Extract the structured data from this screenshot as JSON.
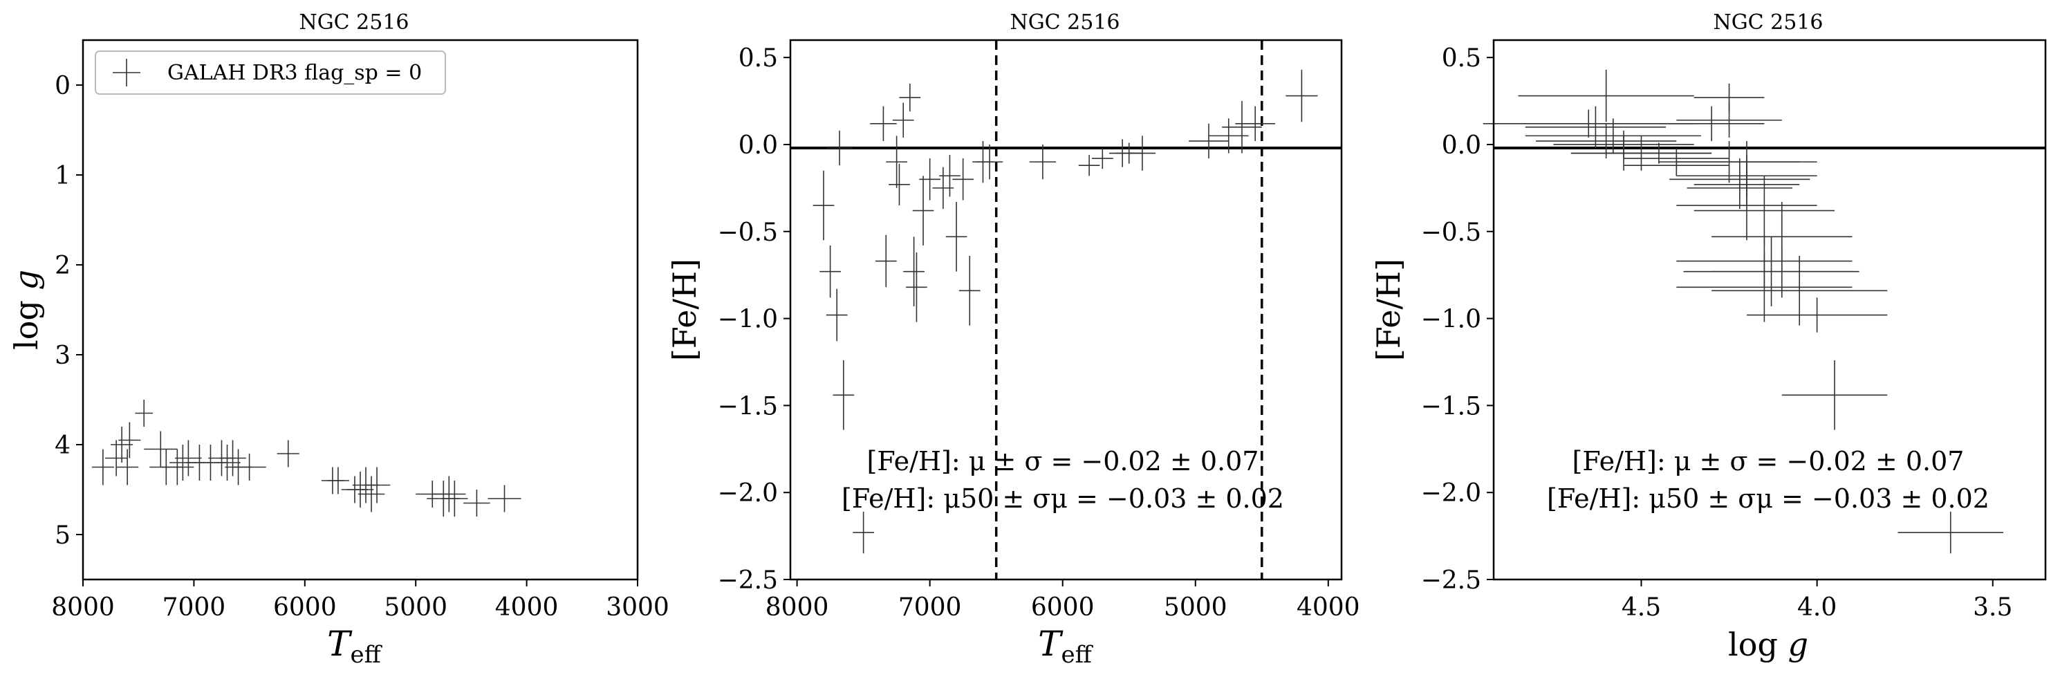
{
  "chart_data": [
    {
      "type": "scatter",
      "title": "NGC 2516",
      "xlabel": "T_eff",
      "ylabel": "log g",
      "xlim": [
        8000,
        3000
      ],
      "ylim": [
        5.5,
        -0.5
      ],
      "xticks": [
        8000,
        7000,
        6000,
        5000,
        4000,
        3000
      ],
      "yticks": [
        0,
        1,
        2,
        3,
        4,
        5
      ],
      "legend": {
        "label": "GALAH DR3 flag_sp = 0",
        "placement": "top-left"
      },
      "series": [
        {
          "name": "GALAH DR3 flag_sp = 0",
          "points": [
            {
              "x": 7820,
              "y": 4.25,
              "ex": 100,
              "ey": 0.2
            },
            {
              "x": 7700,
              "y": 4.15,
              "ex": 100,
              "ey": 0.2
            },
            {
              "x": 7650,
              "y": 4.0,
              "ex": 100,
              "ey": 0.2
            },
            {
              "x": 7600,
              "y": 4.25,
              "ex": 100,
              "ey": 0.2
            },
            {
              "x": 7580,
              "y": 3.95,
              "ex": 100,
              "ey": 0.2
            },
            {
              "x": 7450,
              "y": 3.65,
              "ex": 80,
              "ey": 0.15
            },
            {
              "x": 7300,
              "y": 4.05,
              "ex": 150,
              "ey": 0.2
            },
            {
              "x": 7250,
              "y": 4.25,
              "ex": 150,
              "ey": 0.2
            },
            {
              "x": 7150,
              "y": 4.25,
              "ex": 150,
              "ey": 0.2
            },
            {
              "x": 7100,
              "y": 4.2,
              "ex": 120,
              "ey": 0.2
            },
            {
              "x": 7050,
              "y": 4.15,
              "ex": 120,
              "ey": 0.2
            },
            {
              "x": 6950,
              "y": 4.2,
              "ex": 120,
              "ey": 0.2
            },
            {
              "x": 6850,
              "y": 4.2,
              "ex": 150,
              "ey": 0.2
            },
            {
              "x": 6750,
              "y": 4.15,
              "ex": 120,
              "ey": 0.2
            },
            {
              "x": 6700,
              "y": 4.2,
              "ex": 120,
              "ey": 0.2
            },
            {
              "x": 6650,
              "y": 4.15,
              "ex": 120,
              "ey": 0.2
            },
            {
              "x": 6600,
              "y": 4.25,
              "ex": 120,
              "ey": 0.2
            },
            {
              "x": 6500,
              "y": 4.25,
              "ex": 150,
              "ey": 0.15
            },
            {
              "x": 6150,
              "y": 4.1,
              "ex": 100,
              "ey": 0.15
            },
            {
              "x": 5750,
              "y": 4.4,
              "ex": 100,
              "ey": 0.15
            },
            {
              "x": 5700,
              "y": 4.4,
              "ex": 100,
              "ey": 0.15
            },
            {
              "x": 5550,
              "y": 4.5,
              "ex": 120,
              "ey": 0.15
            },
            {
              "x": 5500,
              "y": 4.5,
              "ex": 120,
              "ey": 0.2
            },
            {
              "x": 5450,
              "y": 4.45,
              "ex": 120,
              "ey": 0.2
            },
            {
              "x": 5400,
              "y": 4.55,
              "ex": 120,
              "ey": 0.2
            },
            {
              "x": 5350,
              "y": 4.45,
              "ex": 120,
              "ey": 0.2
            },
            {
              "x": 4850,
              "y": 4.55,
              "ex": 150,
              "ey": 0.15
            },
            {
              "x": 4750,
              "y": 4.6,
              "ex": 150,
              "ey": 0.2
            },
            {
              "x": 4700,
              "y": 4.55,
              "ex": 150,
              "ey": 0.2
            },
            {
              "x": 4650,
              "y": 4.6,
              "ex": 120,
              "ey": 0.2
            },
            {
              "x": 4450,
              "y": 4.65,
              "ex": 120,
              "ey": 0.15
            },
            {
              "x": 4200,
              "y": 4.6,
              "ex": 150,
              "ey": 0.15
            }
          ]
        }
      ]
    },
    {
      "type": "scatter",
      "title": "NGC 2516",
      "xlabel": "T_eff",
      "ylabel": "[Fe/H]",
      "xlim": [
        8050,
        3900
      ],
      "ylim": [
        -2.5,
        0.6
      ],
      "xticks": [
        8000,
        7000,
        6000,
        5000,
        4000
      ],
      "yticks": [
        0.5,
        0.0,
        -0.5,
        -1.0,
        -1.5,
        -2.0,
        -2.5
      ],
      "hline": -0.02,
      "vlines": [
        6500,
        4500
      ],
      "annotations": [
        "[Fe/H]: μ ± σ = −0.02 ± 0.07",
        "[Fe/H]: μ50 ± σμ = −0.03 ± 0.02"
      ],
      "series": [
        {
          "name": "",
          "points": [
            {
              "x": 7800,
              "y": -0.35,
              "ex": 80,
              "ey": 0.2
            },
            {
              "x": 7750,
              "y": -0.73,
              "ex": 80,
              "ey": 0.15
            },
            {
              "x": 7700,
              "y": -0.98,
              "ex": 80,
              "ey": 0.15
            },
            {
              "x": 7680,
              "y": -0.02,
              "ex": 100,
              "ey": 0.1
            },
            {
              "x": 7650,
              "y": -1.44,
              "ex": 80,
              "ey": 0.2
            },
            {
              "x": 7500,
              "y": -2.23,
              "ex": 80,
              "ey": 0.12
            },
            {
              "x": 7350,
              "y": 0.12,
              "ex": 100,
              "ey": 0.1
            },
            {
              "x": 7330,
              "y": -0.67,
              "ex": 80,
              "ey": 0.15
            },
            {
              "x": 7250,
              "y": -0.1,
              "ex": 80,
              "ey": 0.15
            },
            {
              "x": 7230,
              "y": -0.23,
              "ex": 80,
              "ey": 0.12
            },
            {
              "x": 7200,
              "y": 0.14,
              "ex": 80,
              "ey": 0.1
            },
            {
              "x": 7150,
              "y": 0.27,
              "ex": 80,
              "ey": 0.08
            },
            {
              "x": 7120,
              "y": -0.73,
              "ex": 80,
              "ey": 0.2
            },
            {
              "x": 7100,
              "y": -0.82,
              "ex": 80,
              "ey": 0.2
            },
            {
              "x": 7050,
              "y": -0.38,
              "ex": 80,
              "ey": 0.2
            },
            {
              "x": 7000,
              "y": -0.2,
              "ex": 80,
              "ey": 0.12
            },
            {
              "x": 6900,
              "y": -0.25,
              "ex": 80,
              "ey": 0.12
            },
            {
              "x": 6850,
              "y": -0.18,
              "ex": 80,
              "ey": 0.12
            },
            {
              "x": 6800,
              "y": -0.53,
              "ex": 80,
              "ey": 0.2
            },
            {
              "x": 6750,
              "y": -0.2,
              "ex": 80,
              "ey": 0.12
            },
            {
              "x": 6700,
              "y": -0.84,
              "ex": 80,
              "ey": 0.2
            },
            {
              "x": 6600,
              "y": -0.1,
              "ex": 80,
              "ey": 0.12
            },
            {
              "x": 6550,
              "y": -0.1,
              "ex": 100,
              "ey": 0.1
            },
            {
              "x": 6150,
              "y": -0.1,
              "ex": 100,
              "ey": 0.1
            },
            {
              "x": 5800,
              "y": -0.12,
              "ex": 80,
              "ey": 0.06
            },
            {
              "x": 5700,
              "y": -0.08,
              "ex": 80,
              "ey": 0.06
            },
            {
              "x": 5550,
              "y": -0.05,
              "ex": 100,
              "ey": 0.08
            },
            {
              "x": 5500,
              "y": -0.05,
              "ex": 100,
              "ey": 0.06
            },
            {
              "x": 5400,
              "y": -0.05,
              "ex": 100,
              "ey": 0.1
            },
            {
              "x": 4900,
              "y": 0.02,
              "ex": 150,
              "ey": 0.1
            },
            {
              "x": 4750,
              "y": 0.05,
              "ex": 150,
              "ey": 0.1
            },
            {
              "x": 4650,
              "y": 0.1,
              "ex": 150,
              "ey": 0.15
            },
            {
              "x": 4550,
              "y": 0.12,
              "ex": 150,
              "ey": 0.1
            },
            {
              "x": 4200,
              "y": 0.28,
              "ex": 120,
              "ey": 0.15
            }
          ]
        }
      ]
    },
    {
      "type": "scatter",
      "title": "NGC 2516",
      "xlabel": "log g",
      "ylabel": "[Fe/H]",
      "xlim": [
        4.92,
        3.35
      ],
      "ylim": [
        -2.5,
        0.6
      ],
      "xticks": [
        4.5,
        4.0,
        3.5
      ],
      "yticks": [
        0.5,
        0.0,
        -0.5,
        -1.0,
        -1.5,
        -2.0,
        -2.5
      ],
      "hline": -0.02,
      "annotations": [
        "[Fe/H]: μ ± σ = −0.02 ± 0.07",
        "[Fe/H]: μ50 ± σμ = −0.03 ± 0.02"
      ],
      "series": [
        {
          "name": "",
          "points": [
            {
              "x": 4.6,
              "y": 0.28,
              "ex": 0.25,
              "ey": 0.15
            },
            {
              "x": 4.63,
              "y": 0.1,
              "ex": 0.2,
              "ey": 0.12
            },
            {
              "x": 4.65,
              "y": 0.12,
              "ex": 0.3,
              "ey": 0.08
            },
            {
              "x": 4.58,
              "y": 0.05,
              "ex": 0.25,
              "ey": 0.1
            },
            {
              "x": 4.6,
              "y": 0.02,
              "ex": 0.2,
              "ey": 0.1
            },
            {
              "x": 4.55,
              "y": 0.0,
              "ex": 0.2,
              "ey": 0.08
            },
            {
              "x": 4.5,
              "y": -0.05,
              "ex": 0.2,
              "ey": 0.1
            },
            {
              "x": 4.55,
              "y": -0.05,
              "ex": 0.15,
              "ey": 0.1
            },
            {
              "x": 4.45,
              "y": -0.05,
              "ex": 0.15,
              "ey": 0.06
            },
            {
              "x": 4.4,
              "y": -0.08,
              "ex": 0.15,
              "ey": 0.06
            },
            {
              "x": 4.4,
              "y": -0.12,
              "ex": 0.15,
              "ey": 0.06
            },
            {
              "x": 4.25,
              "y": 0.27,
              "ex": 0.1,
              "ey": 0.08
            },
            {
              "x": 4.25,
              "y": 0.14,
              "ex": 0.15,
              "ey": 0.1
            },
            {
              "x": 4.3,
              "y": 0.12,
              "ex": 0.15,
              "ey": 0.1
            },
            {
              "x": 4.25,
              "y": -0.1,
              "ex": 0.2,
              "ey": 0.12
            },
            {
              "x": 4.2,
              "y": -0.1,
              "ex": 0.2,
              "ey": 0.12
            },
            {
              "x": 4.2,
              "y": -0.18,
              "ex": 0.2,
              "ey": 0.12
            },
            {
              "x": 4.22,
              "y": -0.2,
              "ex": 0.2,
              "ey": 0.12
            },
            {
              "x": 4.2,
              "y": -0.23,
              "ex": 0.15,
              "ey": 0.12
            },
            {
              "x": 4.22,
              "y": -0.25,
              "ex": 0.15,
              "ey": 0.12
            },
            {
              "x": 4.2,
              "y": -0.35,
              "ex": 0.2,
              "ey": 0.2
            },
            {
              "x": 4.15,
              "y": -0.38,
              "ex": 0.2,
              "ey": 0.2
            },
            {
              "x": 4.1,
              "y": -0.53,
              "ex": 0.2,
              "ey": 0.2
            },
            {
              "x": 4.15,
              "y": -0.67,
              "ex": 0.25,
              "ey": 0.15
            },
            {
              "x": 4.1,
              "y": -0.73,
              "ex": 0.2,
              "ey": 0.15
            },
            {
              "x": 4.13,
              "y": -0.73,
              "ex": 0.25,
              "ey": 0.2
            },
            {
              "x": 4.15,
              "y": -0.82,
              "ex": 0.25,
              "ey": 0.2
            },
            {
              "x": 4.05,
              "y": -0.84,
              "ex": 0.25,
              "ey": 0.2
            },
            {
              "x": 4.0,
              "y": -0.98,
              "ex": 0.2,
              "ey": 0.1
            },
            {
              "x": 3.95,
              "y": -1.44,
              "ex": 0.15,
              "ey": 0.2
            },
            {
              "x": 3.62,
              "y": -2.23,
              "ex": 0.15,
              "ey": 0.12
            }
          ]
        }
      ]
    }
  ]
}
